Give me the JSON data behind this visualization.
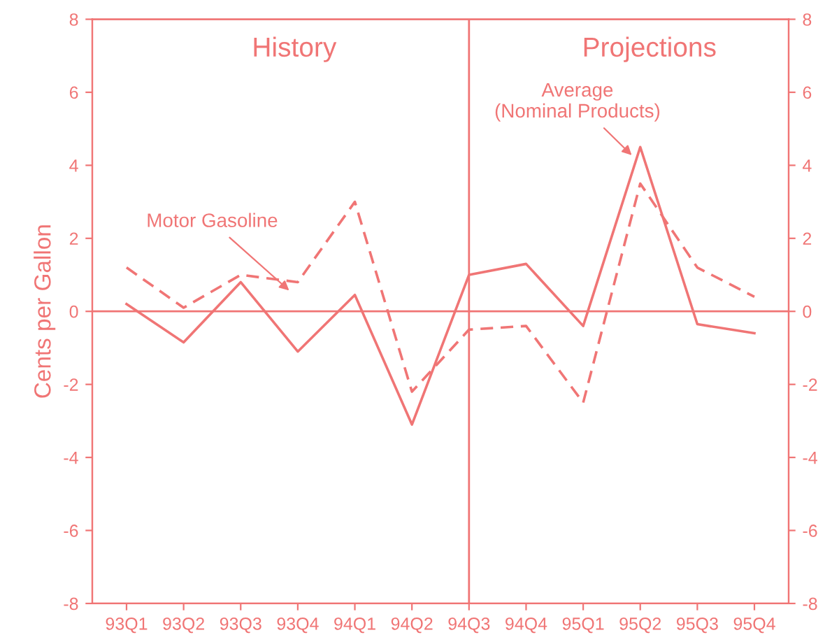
{
  "chart_data": {
    "type": "line",
    "ylabel": "Cents per Gallon",
    "categories": [
      "93Q1",
      "93Q2",
      "93Q3",
      "93Q4",
      "94Q1",
      "94Q2",
      "94Q3",
      "94Q4",
      "95Q1",
      "95Q2",
      "95Q3",
      "95Q4"
    ],
    "series": [
      {
        "name": "Motor Gasoline",
        "color": "#f07575",
        "line_style": "dashed",
        "values": [
          1.2,
          0.1,
          1.0,
          0.8,
          3.0,
          -2.2,
          -0.5,
          -0.4,
          -2.5,
          3.5,
          1.2,
          0.4
        ]
      },
      {
        "name": "Average\n(Nominal Products)",
        "color": "#f07575",
        "line_style": "solid",
        "values": [
          0.2,
          -0.85,
          0.8,
          -1.1,
          0.45,
          -3.1,
          1.0,
          1.3,
          -0.4,
          4.5,
          -0.35,
          -0.6
        ]
      }
    ],
    "ylim": [
      -8,
      8
    ],
    "yticks": [
      -8,
      -6,
      -4,
      -2,
      0,
      2,
      4,
      6,
      8
    ],
    "y2lim": [
      -8,
      8
    ],
    "y2ticks": [
      -8,
      -6,
      -4,
      -2,
      0,
      2,
      4,
      6,
      8
    ],
    "ref_lines": [
      {
        "axis": "y",
        "value": 0,
        "color": "#f07575"
      },
      {
        "axis": "x",
        "value": "94Q3",
        "color": "#f07575"
      }
    ],
    "annotations": [
      "History",
      "Projections"
    ],
    "marker": "none",
    "grid": false,
    "legend": false
  }
}
